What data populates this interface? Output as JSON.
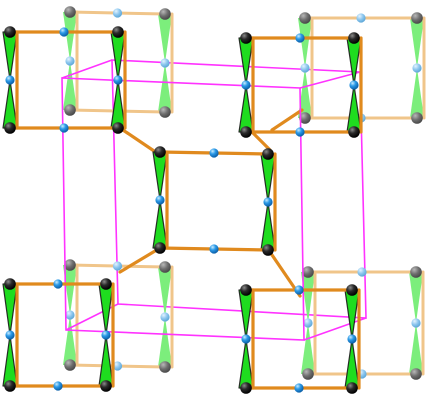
{
  "colors": {
    "background": "#ffffff",
    "metal_green": "#1fdc1f",
    "metal_green_faded": "#7cee7c",
    "linker_orange": "#e08a1e",
    "linker_orange_faded": "#f0c58a",
    "node_black": "#1a1a1a",
    "node_black_faded": "#6e6e6e",
    "node_blue": "#1e90e0",
    "node_blue_faded": "#8cc6ee",
    "unit_cell": "#ff33ff"
  },
  "legend": []
}
